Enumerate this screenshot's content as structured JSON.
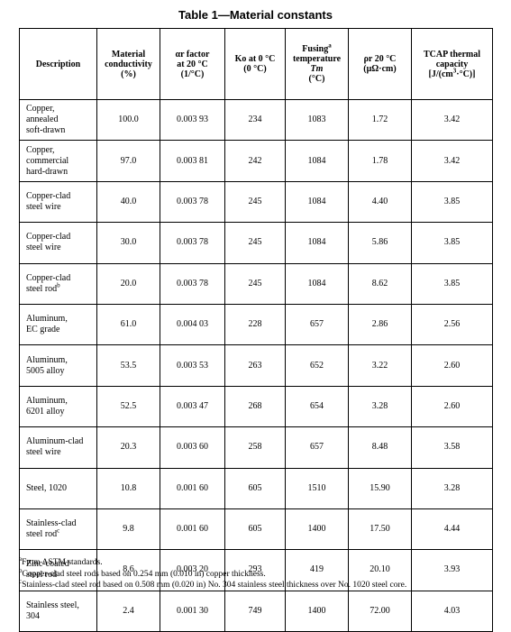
{
  "title": "Table 1—Material constants",
  "headers": [
    {
      "lines": [
        "Description"
      ]
    },
    {
      "lines": [
        "Material",
        "conductivity",
        "(%)"
      ]
    },
    {
      "lines": [
        "αr factor",
        "at 20 °C",
        "(1/°C)"
      ]
    },
    {
      "lines": [
        "Ko at 0 °C",
        "(0 °C)"
      ]
    },
    {
      "lines": [
        "Fusinga",
        "temperature",
        "Tm",
        "(°C)"
      ]
    },
    {
      "lines": [
        "ρr 20 °C",
        "(μΩ·cm)"
      ]
    },
    {
      "lines": [
        "TCAP thermal",
        "capacity",
        "[J/(cm3·°C)]"
      ]
    }
  ],
  "rows": [
    {
      "desc": [
        "Copper,",
        "annealed",
        "soft-drawn"
      ],
      "conductivity": "100.0",
      "alpha": "0.003 93",
      "ko": "234",
      "fusing": "1083",
      "rho": "1.72",
      "tcap": "3.42"
    },
    {
      "desc": [
        "Copper,",
        "commercial",
        "hard-drawn"
      ],
      "conductivity": "97.0",
      "alpha": "0.003 81",
      "ko": "242",
      "fusing": "1084",
      "rho": "1.78",
      "tcap": "3.42"
    },
    {
      "desc": [
        "Copper-clad",
        "steel wire"
      ],
      "conductivity": "40.0",
      "alpha": "0.003 78",
      "ko": "245",
      "fusing": "1084",
      "rho": "4.40",
      "tcap": "3.85"
    },
    {
      "desc": [
        "Copper-clad",
        "steel wire"
      ],
      "conductivity": "30.0",
      "alpha": "0.003 78",
      "ko": "245",
      "fusing": "1084",
      "rho": "5.86",
      "tcap": "3.85"
    },
    {
      "desc": [
        "Copper-clad",
        "steel rodb"
      ],
      "conductivity": "20.0",
      "alpha": "0.003 78",
      "ko": "245",
      "fusing": "1084",
      "rho": "8.62",
      "tcap": "3.85"
    },
    {
      "desc": [
        "Aluminum,",
        "EC grade"
      ],
      "conductivity": "61.0",
      "alpha": "0.004 03",
      "ko": "228",
      "fusing": "657",
      "rho": "2.86",
      "tcap": "2.56"
    },
    {
      "desc": [
        "Aluminum,",
        "5005 alloy"
      ],
      "conductivity": "53.5",
      "alpha": "0.003 53",
      "ko": "263",
      "fusing": "652",
      "rho": "3.22",
      "tcap": "2.60"
    },
    {
      "desc": [
        "Aluminum,",
        "6201 alloy"
      ],
      "conductivity": "52.5",
      "alpha": "0.003 47",
      "ko": "268",
      "fusing": "654",
      "rho": "3.28",
      "tcap": "2.60"
    },
    {
      "desc": [
        "Aluminum-clad",
        "steel wire"
      ],
      "conductivity": "20.3",
      "alpha": "0.003 60",
      "ko": "258",
      "fusing": "657",
      "rho": "8.48",
      "tcap": "3.58"
    },
    {
      "desc": [
        "Steel, 1020"
      ],
      "conductivity": "10.8",
      "alpha": "0.001 60",
      "ko": "605",
      "fusing": "1510",
      "rho": "15.90",
      "tcap": "3.28"
    },
    {
      "desc": [
        "Stainless-clad",
        "steel rodc"
      ],
      "conductivity": "9.8",
      "alpha": "0.001 60",
      "ko": "605",
      "fusing": "1400",
      "rho": "17.50",
      "tcap": "4.44"
    },
    {
      "desc": [
        "Zinc-coated",
        "steel rod"
      ],
      "conductivity": "8.6",
      "alpha": "0.003 20",
      "ko": "293",
      "fusing": "419",
      "rho": "20.10",
      "tcap": "3.93"
    },
    {
      "desc": [
        "Stainless steel,",
        "304"
      ],
      "conductivity": "2.4",
      "alpha": "0.001 30",
      "ko": "749",
      "fusing": "1400",
      "rho": "72.00",
      "tcap": "4.03"
    }
  ],
  "footnotes": [
    {
      "mark": "a",
      "text": "From ASTM standards."
    },
    {
      "mark": "b",
      "text": "Copper-clad steel rods based on 0.254 mm (0.010 in) copper thickness."
    },
    {
      "mark": "c",
      "text": "Stainless-clad steel rod based on 0.508 mm (0.020 in) No. 304 stainless steel thickness over No. 1020 steel core."
    }
  ]
}
